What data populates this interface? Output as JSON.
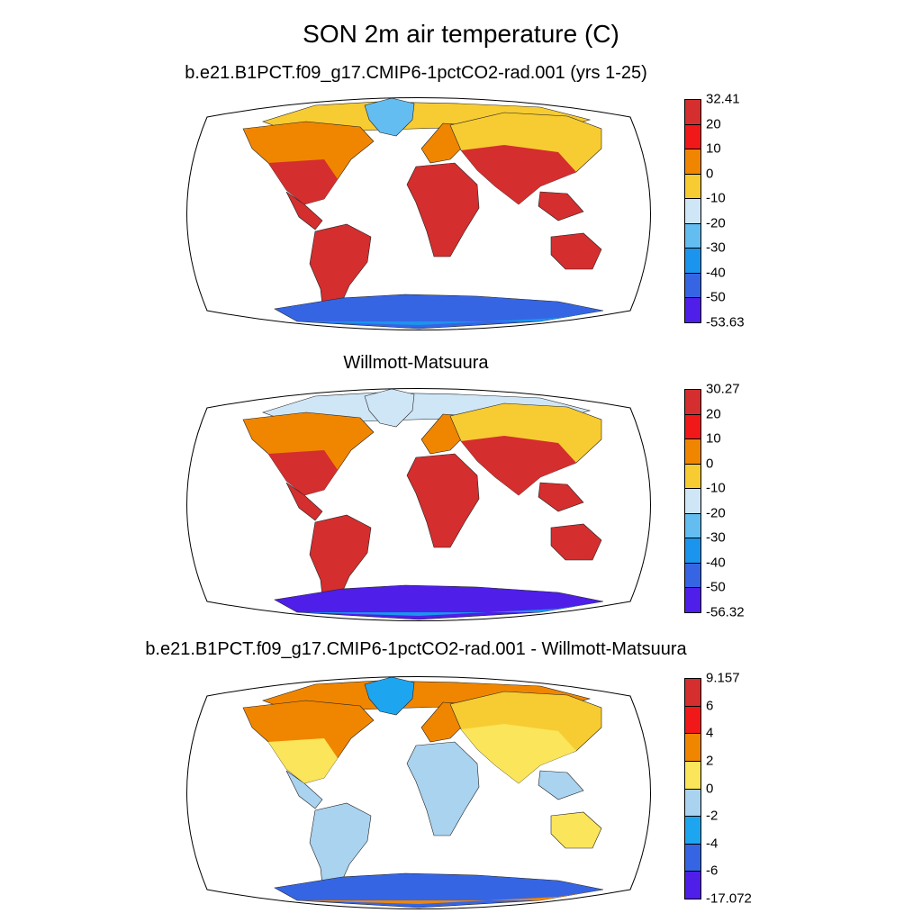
{
  "title": "SON 2m air temperature (C)",
  "panels": [
    {
      "subtitle": "b.e21.B1PCT.f09_g17.CMIP6-1pctCO2-rad.001 (yrs 1-25)",
      "colorbar": {
        "labels": [
          "32.41",
          "20",
          "10",
          "0",
          "-10",
          "-20",
          "-30",
          "-40",
          "-50",
          "-53.63"
        ],
        "colors": [
          "#d42e2e",
          "#f01818",
          "#f08600",
          "#f7cc32",
          "#cfe6f7",
          "#63bdf0",
          "#1b94ee",
          "#3665e4",
          "#4f1ee8"
        ]
      },
      "land": {
        "tropics": "#d42e2e",
        "subtropics": "#d42e2e",
        "midlat": "#f08600",
        "highlat": "#f7cc32",
        "arctic": "#f7cc32",
        "greenland": "#63bdf0",
        "antarctica": "#3665e4",
        "antarctica_edge": "#1b94ee"
      }
    },
    {
      "subtitle": "Willmott-Matsuura",
      "colorbar": {
        "labels": [
          "30.27",
          "20",
          "10",
          "0",
          "-10",
          "-20",
          "-30",
          "-40",
          "-50",
          "-56.32"
        ],
        "colors": [
          "#d42e2e",
          "#f01818",
          "#f08600",
          "#f7cc32",
          "#cfe6f7",
          "#63bdf0",
          "#1b94ee",
          "#3665e4",
          "#4f1ee8"
        ]
      },
      "land": {
        "tropics": "#d42e2e",
        "subtropics": "#d42e2e",
        "midlat": "#f08600",
        "highlat": "#f7cc32",
        "arctic": "#cfe6f7",
        "greenland": "#cfe6f7",
        "antarctica": "#4f1ee8",
        "antarctica_edge": "#1b94ee"
      }
    },
    {
      "subtitle": "b.e21.B1PCT.f09_g17.CMIP6-1pctCO2-rad.001 - Willmott-Matsuura",
      "colorbar": {
        "labels": [
          "9.157",
          "6",
          "4",
          "2",
          "0",
          "-2",
          "-4",
          "-6",
          "-17.072"
        ],
        "colors": [
          "#d42e2e",
          "#f01818",
          "#f08600",
          "#fbe55a",
          "#a9d3ef",
          "#1ea5ef",
          "#3665e4",
          "#4f1ee8"
        ]
      },
      "land": {
        "tropics": "#a9d3ef",
        "subtropics": "#fbe55a",
        "midlat": "#f08600",
        "highlat": "#f7cc32",
        "arctic": "#f08600",
        "greenland": "#1ea5ef",
        "antarctica": "#3665e4",
        "antarctica_edge": "#f08600"
      }
    }
  ]
}
